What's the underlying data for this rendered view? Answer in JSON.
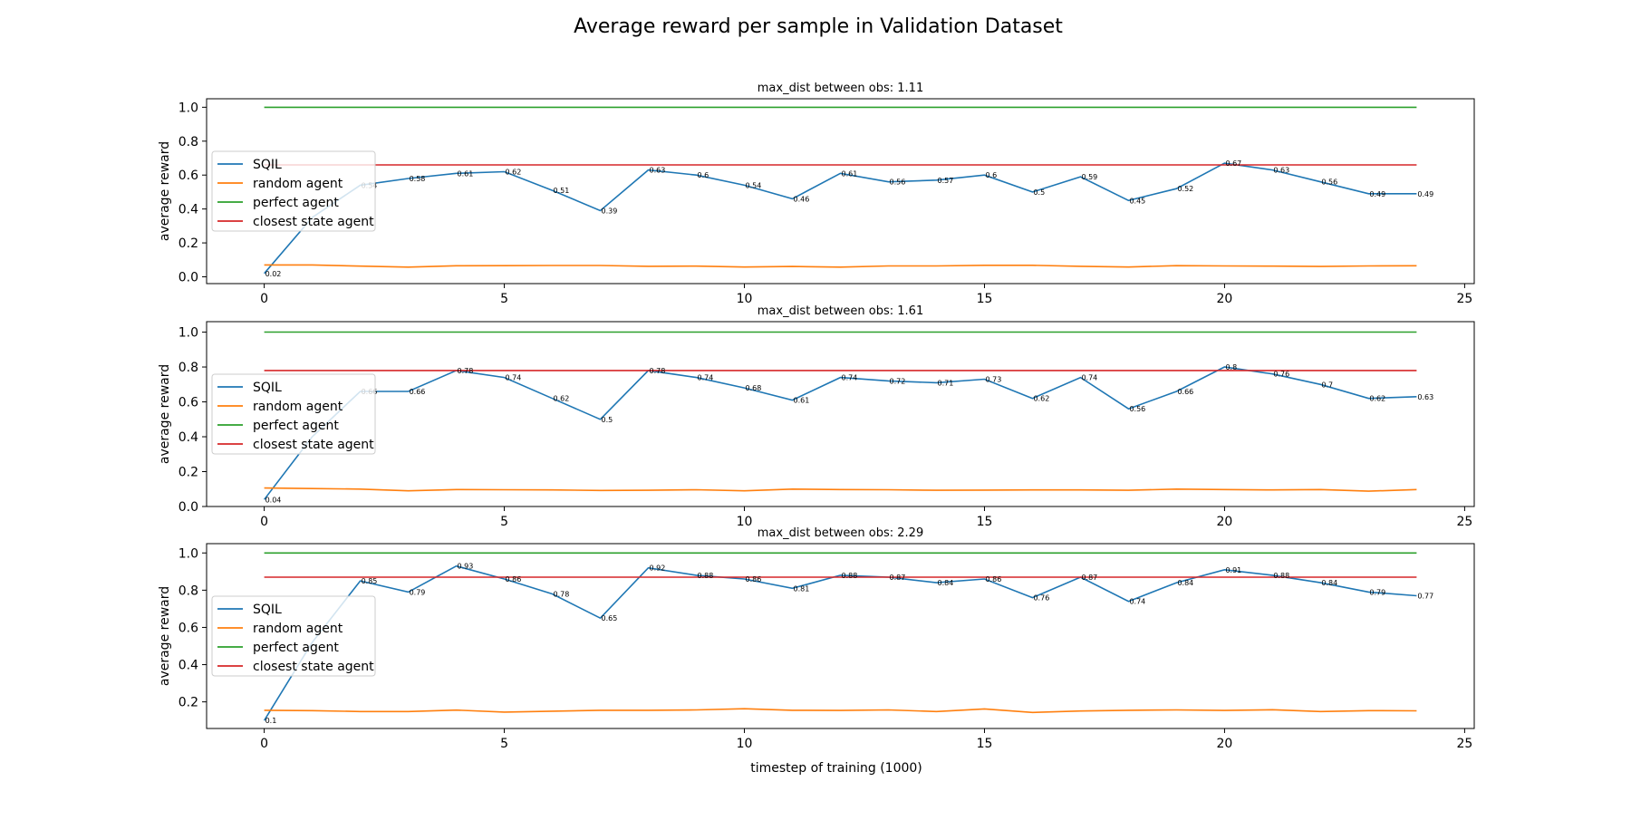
{
  "chart_data": {
    "suptitle": "Average reward per sample in Validation Dataset",
    "type": "line",
    "xlabel": "timestep of training (1000)",
    "xticks": [
      0,
      5,
      10,
      15,
      20,
      25
    ],
    "xlim": [
      -1.2,
      25.2
    ],
    "legend_position": "center-left",
    "colors": {
      "SQIL": "#1f77b4",
      "random agent": "#ff7f0e",
      "perfect agent": "#2ca02c",
      "closest state agent": "#d62728"
    },
    "subplots": [
      {
        "title": "max_dist between obs: 1.11",
        "ylabel": "average reward",
        "ylim": [
          -0.04,
          1.05
        ],
        "yticks": [
          "0.0",
          "0.2",
          "0.4",
          "0.6",
          "0.8",
          "1.0"
        ],
        "labels_from": 0,
        "series": [
          {
            "name": "SQIL",
            "x": [
              0,
              1,
              2,
              3,
              4,
              5,
              6,
              7,
              8,
              9,
              10,
              11,
              12,
              13,
              14,
              15,
              16,
              17,
              18,
              19,
              20,
              21,
              22,
              23,
              24
            ],
            "values": [
              0.02,
              0.35,
              0.54,
              0.58,
              0.61,
              0.62,
              0.51,
              0.39,
              0.63,
              0.6,
              0.54,
              0.46,
              0.61,
              0.56,
              0.57,
              0.6,
              0.5,
              0.59,
              0.45,
              0.52,
              0.67,
              0.63,
              0.56,
              0.49,
              0.49
            ]
          },
          {
            "name": "random agent",
            "x": [
              0,
              1,
              2,
              3,
              4,
              5,
              6,
              7,
              8,
              9,
              10,
              11,
              12,
              13,
              14,
              15,
              16,
              17,
              18,
              19,
              20,
              21,
              22,
              23,
              24
            ],
            "values": [
              0.07,
              0.07,
              0.063,
              0.057,
              0.065,
              0.066,
              0.067,
              0.067,
              0.062,
              0.063,
              0.058,
              0.061,
              0.057,
              0.064,
              0.064,
              0.068,
              0.068,
              0.062,
              0.058,
              0.066,
              0.064,
              0.063,
              0.061,
              0.064,
              0.065
            ]
          },
          {
            "name": "perfect agent",
            "x": [
              0,
              24
            ],
            "values": [
              1.0,
              1.0
            ]
          },
          {
            "name": "closest state agent",
            "x": [
              0,
              24
            ],
            "values": [
              0.66,
              0.66
            ]
          }
        ]
      },
      {
        "title": "max_dist between obs: 1.61",
        "ylabel": "average reward",
        "ylim": [
          0.0,
          1.06
        ],
        "yticks": [
          "0.0",
          "0.2",
          "0.4",
          "0.6",
          "0.8",
          "1.0"
        ],
        "labels_from": 0,
        "series": [
          {
            "name": "SQIL",
            "x": [
              0,
              1,
              2,
              3,
              4,
              5,
              6,
              7,
              8,
              9,
              10,
              11,
              12,
              13,
              14,
              15,
              16,
              17,
              18,
              19,
              20,
              21,
              22,
              23,
              24
            ],
            "values": [
              0.04,
              0.4,
              0.66,
              0.66,
              0.78,
              0.74,
              0.62,
              0.5,
              0.78,
              0.74,
              0.68,
              0.61,
              0.74,
              0.72,
              0.71,
              0.73,
              0.62,
              0.74,
              0.56,
              0.66,
              0.8,
              0.76,
              0.7,
              0.62,
              0.63
            ]
          },
          {
            "name": "random agent",
            "x": [
              0,
              1,
              2,
              3,
              4,
              5,
              6,
              7,
              8,
              9,
              10,
              11,
              12,
              13,
              14,
              15,
              16,
              17,
              18,
              19,
              20,
              21,
              22,
              23,
              24
            ],
            "values": [
              0.106,
              0.103,
              0.1,
              0.09,
              0.097,
              0.096,
              0.095,
              0.092,
              0.093,
              0.096,
              0.09,
              0.1,
              0.097,
              0.096,
              0.093,
              0.094,
              0.095,
              0.095,
              0.093,
              0.1,
              0.097,
              0.095,
              0.097,
              0.088,
              0.097
            ]
          },
          {
            "name": "perfect agent",
            "x": [
              0,
              24
            ],
            "values": [
              1.0,
              1.0
            ]
          },
          {
            "name": "closest state agent",
            "x": [
              0,
              24
            ],
            "values": [
              0.78,
              0.78
            ]
          }
        ]
      },
      {
        "title": "max_dist between obs: 2.29",
        "ylabel": "average reward",
        "ylim": [
          0.057,
          1.05
        ],
        "yticks": [
          "0.2",
          "0.4",
          "0.6",
          "0.8",
          "1.0"
        ],
        "labels_from": 0,
        "series": [
          {
            "name": "SQIL",
            "x": [
              0,
              1,
              2,
              3,
              4,
              5,
              6,
              7,
              8,
              9,
              10,
              11,
              12,
              13,
              14,
              15,
              16,
              17,
              18,
              19,
              20,
              21,
              22,
              23,
              24
            ],
            "values": [
              0.1,
              0.52,
              0.85,
              0.79,
              0.93,
              0.86,
              0.78,
              0.65,
              0.92,
              0.88,
              0.86,
              0.81,
              0.88,
              0.87,
              0.84,
              0.86,
              0.76,
              0.87,
              0.74,
              0.84,
              0.91,
              0.88,
              0.84,
              0.79,
              0.77
            ]
          },
          {
            "name": "random agent",
            "x": [
              0,
              1,
              2,
              3,
              4,
              5,
              6,
              7,
              8,
              9,
              10,
              11,
              12,
              13,
              14,
              15,
              16,
              17,
              18,
              19,
              20,
              21,
              22,
              23,
              24
            ],
            "values": [
              0.155,
              0.153,
              0.148,
              0.148,
              0.156,
              0.145,
              0.15,
              0.155,
              0.155,
              0.157,
              0.163,
              0.155,
              0.154,
              0.157,
              0.148,
              0.162,
              0.143,
              0.151,
              0.155,
              0.157,
              0.154,
              0.158,
              0.148,
              0.153,
              0.152
            ]
          },
          {
            "name": "perfect agent",
            "x": [
              0,
              24
            ],
            "values": [
              1.0,
              1.0
            ]
          },
          {
            "name": "closest state agent",
            "x": [
              0,
              24
            ],
            "values": [
              0.87,
              0.87
            ]
          }
        ]
      }
    ]
  }
}
